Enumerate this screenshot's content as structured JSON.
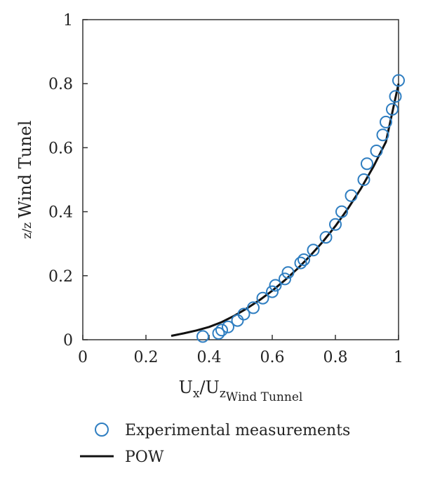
{
  "chart_data": {
    "type": "scatter",
    "xlim": [
      0,
      1
    ],
    "ylim": [
      0,
      1
    ],
    "x_ticks": [
      "0",
      "0.2",
      "0.4",
      "0.6",
      "0.8",
      "1"
    ],
    "y_ticks": [
      "0",
      "0.2",
      "0.4",
      "0.6",
      "0.8",
      "1"
    ],
    "xlabel": {
      "main": "U",
      "sub1": "x",
      "mid": "/U",
      "sub2": "z",
      "sub3": "Wind Tunnel"
    },
    "ylabel": {
      "main": "z/z",
      "sub": "Wind Tunel"
    },
    "grid": false,
    "legend_position": "bottom",
    "series": [
      {
        "name": "Experimental measurements",
        "kind": "scatter",
        "marker": "open-circle",
        "color": "#2f7ec1",
        "x": [
          0.38,
          0.43,
          0.44,
          0.46,
          0.49,
          0.51,
          0.54,
          0.57,
          0.6,
          0.61,
          0.64,
          0.65,
          0.69,
          0.7,
          0.73,
          0.77,
          0.8,
          0.82,
          0.85,
          0.89,
          0.9,
          0.93,
          0.95,
          0.96,
          0.98,
          0.99,
          1.0
        ],
        "y": [
          0.01,
          0.02,
          0.03,
          0.04,
          0.06,
          0.08,
          0.1,
          0.13,
          0.15,
          0.17,
          0.19,
          0.21,
          0.24,
          0.25,
          0.28,
          0.32,
          0.36,
          0.4,
          0.45,
          0.5,
          0.55,
          0.59,
          0.64,
          0.68,
          0.72,
          0.76,
          0.81
        ]
      },
      {
        "name": "POW",
        "kind": "line",
        "color": "#111111",
        "x": [
          0.28,
          0.32,
          0.36,
          0.4,
          0.44,
          0.48,
          0.52,
          0.56,
          0.6,
          0.64,
          0.68,
          0.72,
          0.76,
          0.8,
          0.84,
          0.88,
          0.92,
          0.96,
          1.0
        ],
        "y": [
          0.012,
          0.02,
          0.029,
          0.04,
          0.055,
          0.075,
          0.098,
          0.124,
          0.153,
          0.186,
          0.222,
          0.262,
          0.306,
          0.355,
          0.41,
          0.471,
          0.54,
          0.618,
          0.8
        ]
      }
    ]
  }
}
